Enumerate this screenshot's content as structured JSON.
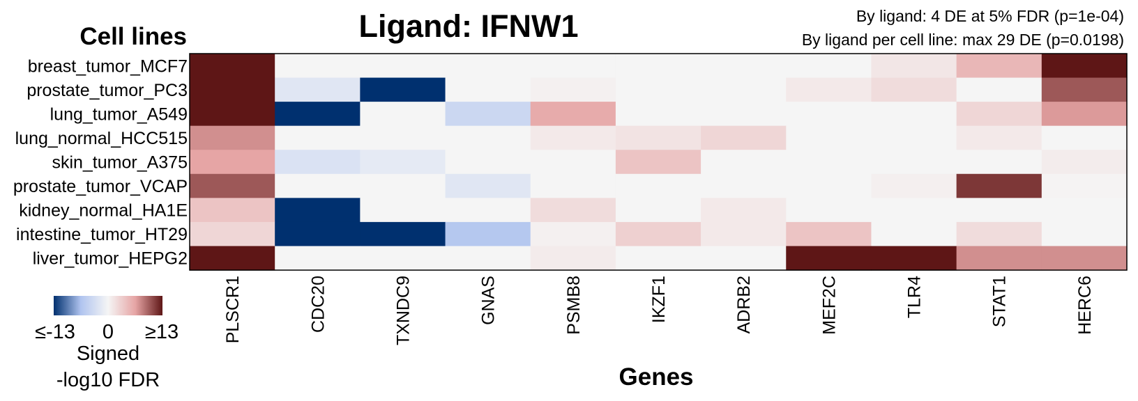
{
  "colors": {
    "neg_max": "#00306f",
    "neg_mid": "#b0c4ef",
    "zero": "#f5f5f5",
    "pos_mid": "#e6a5a5",
    "pos_max": "#5e1616"
  },
  "chart_data": {
    "type": "heatmap",
    "title": "Ligand: IFNW1",
    "subtitle_lines": [
      "By ligand: 4 DE at 5% FDR (p=1e-04)",
      "By ligand per cell line: max 29 DE (p=0.0198)"
    ],
    "ylabel": "Cell lines",
    "xlabel": "Genes",
    "rows": [
      "breast_tumor_MCF7",
      "prostate_tumor_PC3",
      "lung_tumor_A549",
      "lung_normal_HCC515",
      "skin_tumor_A375",
      "prostate_tumor_VCAP",
      "kidney_normal_HA1E",
      "intestine_tumor_HT29",
      "liver_tumor_HEPG2"
    ],
    "columns": [
      "PLSCR1",
      "CDC20",
      "TXNDC9",
      "GNAS",
      "PSMB8",
      "IKZF1",
      "ADRB2",
      "MEF2C",
      "TLR4",
      "STAT1",
      "HERC6"
    ],
    "values": [
      [
        13,
        0,
        0,
        0,
        0,
        0,
        0,
        0,
        1.2,
        5,
        13
      ],
      [
        13,
        -2,
        -13,
        0,
        0.4,
        0,
        0,
        1,
        2,
        0,
        10
      ],
      [
        13,
        -13,
        0,
        -4,
        6,
        0,
        0,
        0,
        0,
        2.5,
        7
      ],
      [
        7.5,
        0,
        0,
        0,
        1,
        1.5,
        2.5,
        0,
        0,
        1,
        0
      ],
      [
        6.5,
        -2.5,
        -1.5,
        0,
        0,
        4,
        0,
        0,
        0,
        0,
        0.7
      ],
      [
        10,
        0,
        0,
        -2,
        0,
        0,
        0,
        0,
        0.5,
        11.5,
        0.2
      ],
      [
        4,
        -13,
        0,
        0,
        2,
        0,
        1,
        0,
        0,
        0,
        0
      ],
      [
        2.5,
        -13,
        -13,
        -6,
        0.4,
        3,
        1,
        4,
        0,
        2,
        0
      ],
      [
        13,
        0,
        0,
        0,
        0.8,
        0,
        0,
        13,
        13,
        7.5,
        7.5
      ]
    ],
    "scale_min": -13,
    "scale_max": 13,
    "legend": {
      "min_label": "≤-13",
      "mid_label": "0",
      "max_label": "≥13",
      "title_line1": "Signed",
      "title_line2": "-log10 FDR",
      "position": "bottom-left"
    }
  }
}
